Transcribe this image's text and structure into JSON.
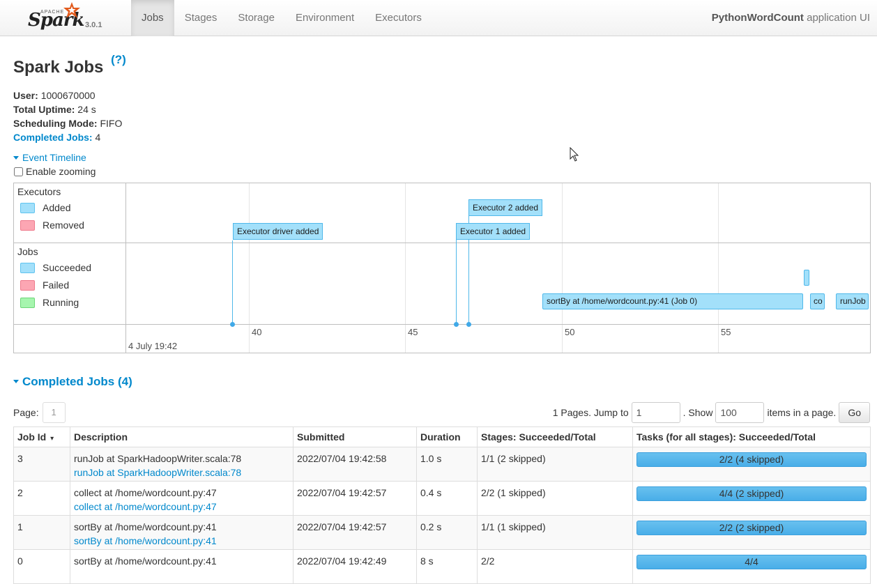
{
  "navbar": {
    "brand_apache": "APACHE",
    "brand_name": "Spark",
    "version": "3.0.1",
    "tabs": [
      {
        "label": "Jobs",
        "active": true
      },
      {
        "label": "Stages",
        "active": false
      },
      {
        "label": "Storage",
        "active": false
      },
      {
        "label": "Environment",
        "active": false
      },
      {
        "label": "Executors",
        "active": false
      }
    ],
    "app_name": "PythonWordCount",
    "app_suffix": "application UI"
  },
  "header": {
    "title": "Spark Jobs",
    "help": "(?)"
  },
  "summary": {
    "user_label": "User:",
    "user_value": "1000670000",
    "uptime_label": "Total Uptime:",
    "uptime_value": "24 s",
    "mode_label": "Scheduling Mode:",
    "mode_value": "FIFO",
    "completed_label": "Completed Jobs:",
    "completed_value": "4"
  },
  "event_timeline": {
    "toggle_label": "Event Timeline",
    "zoom_label": "Enable zooming",
    "executors_group": "Executors",
    "executor_legend": [
      "Added",
      "Removed"
    ],
    "jobs_group": "Jobs",
    "job_legend": [
      "Succeeded",
      "Failed",
      "Running"
    ],
    "axis_ticks": [
      "40",
      "45",
      "50",
      "55"
    ],
    "date_label": "4 July 19:42",
    "executor_events": [
      "Executor driver added",
      "Executor 2 added",
      "Executor 1 added"
    ],
    "job_bars": [
      "sortBy at /home/wordcount.py:41 (Job 0)",
      "co",
      "runJob",
      ""
    ]
  },
  "completed_section": {
    "title": "Completed Jobs (4)"
  },
  "pager": {
    "page_label": "Page:",
    "page_value": "1",
    "pages_text": "1 Pages. Jump to",
    "jump_value": "1",
    "show_text": ". Show",
    "show_value": "100",
    "items_text": "items in a page.",
    "go_label": "Go"
  },
  "table": {
    "headers": [
      "Job Id",
      "Description",
      "Submitted",
      "Duration",
      "Stages: Succeeded/Total",
      "Tasks (for all stages): Succeeded/Total"
    ],
    "sort_indicator": "▾",
    "rows": [
      {
        "id": "3",
        "desc": "runJob at SparkHadoopWriter.scala:78",
        "link": "runJob at SparkHadoopWriter.scala:78",
        "submitted": "2022/07/04 19:42:58",
        "duration": "1.0 s",
        "stages": "1/1 (2 skipped)",
        "tasks": "2/2 (4 skipped)",
        "progress": 1.0
      },
      {
        "id": "2",
        "desc": "collect at /home/wordcount.py:47",
        "link": "collect at /home/wordcount.py:47",
        "submitted": "2022/07/04 19:42:57",
        "duration": "0.4 s",
        "stages": "2/2 (1 skipped)",
        "tasks": "4/4 (2 skipped)",
        "progress": 1.0
      },
      {
        "id": "1",
        "desc": "sortBy at /home/wordcount.py:41",
        "link": "sortBy at /home/wordcount.py:41",
        "submitted": "2022/07/04 19:42:57",
        "duration": "0.2 s",
        "stages": "1/1 (1 skipped)",
        "tasks": "2/2 (2 skipped)",
        "progress": 1.0
      },
      {
        "id": "0",
        "desc": "sortBy at /home/wordcount.py:41",
        "link": "",
        "submitted": "2022/07/04 19:42:49",
        "duration": "8 s",
        "stages": "2/2",
        "tasks": "4/4",
        "progress": 1.0
      }
    ]
  }
}
